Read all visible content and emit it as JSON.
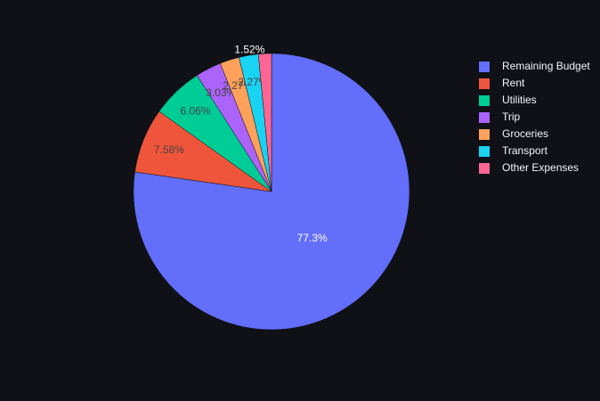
{
  "chart_data": {
    "type": "pie",
    "categories": [
      "Remaining Budget",
      "Rent",
      "Utilities",
      "Trip",
      "Groceries",
      "Transport",
      "Other Expenses"
    ],
    "values": [
      77.3,
      7.58,
      6.06,
      3.03,
      2.27,
      2.27,
      1.52
    ],
    "value_labels": [
      "77.3%",
      "7.58%",
      "6.06%",
      "3.03%",
      "2.27%",
      "2.27%",
      "1.52%"
    ],
    "colors": [
      "#636efa",
      "#ef553b",
      "#00cc96",
      "#ab63fa",
      "#ffa15a",
      "#19d3f3",
      "#ff6692"
    ],
    "legend": "top-right"
  }
}
